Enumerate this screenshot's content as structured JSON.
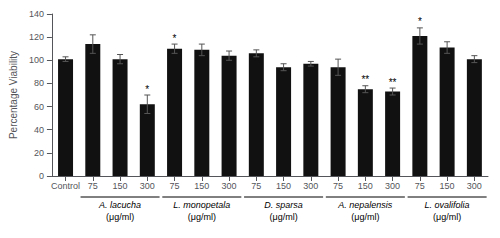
{
  "chart_data": {
    "type": "bar",
    "categories": [
      "Control",
      "75",
      "150",
      "300",
      "75",
      "150",
      "300",
      "75",
      "150",
      "300",
      "75",
      "150",
      "300",
      "75",
      "150",
      "300"
    ],
    "values": [
      101,
      114,
      101,
      62,
      110,
      109,
      104,
      106,
      94,
      97,
      94,
      75,
      73,
      121,
      111,
      101
    ],
    "errors": [
      2,
      8,
      4,
      8,
      4,
      5,
      4,
      3,
      3,
      2,
      7,
      3,
      3,
      7,
      5,
      3
    ],
    "significance": [
      null,
      null,
      null,
      "*",
      "*",
      null,
      null,
      null,
      null,
      null,
      null,
      "**",
      "**",
      "*",
      null,
      null
    ],
    "group": [
      null,
      0,
      0,
      0,
      1,
      1,
      1,
      2,
      2,
      2,
      3,
      3,
      3,
      4,
      4,
      4
    ],
    "groups": [
      {
        "label": "A. lacucha",
        "sub": "(μg/ml)"
      },
      {
        "label": "L. monopetala",
        "sub": "(μg/ml)"
      },
      {
        "label": "D. sparsa",
        "sub": "(μg/ml)"
      },
      {
        "label": "A. nepalensis",
        "sub": "(μg/ml)"
      },
      {
        "label": "L. ovalifolia",
        "sub": "(μg/ml)"
      }
    ],
    "color": "#111111",
    "ylabel": "Percentage Viability",
    "ylim": [
      0,
      140
    ],
    "yticks": [
      0,
      20,
      40,
      60,
      80,
      100,
      120,
      140
    ],
    "grid": false
  }
}
